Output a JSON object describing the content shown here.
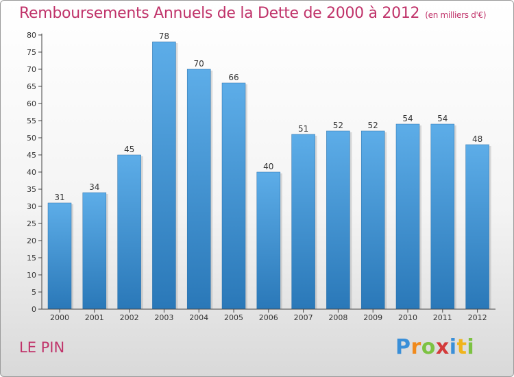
{
  "title": "Remboursements Annuels de la Dette de 2000 à 2012",
  "unit": "(en milliers d'€)",
  "commune": "LE PIN",
  "logo": {
    "letters": [
      {
        "ch": "P",
        "color": "#3a8fd8"
      },
      {
        "ch": "r",
        "color": "#f08a1c"
      },
      {
        "ch": "o",
        "color": "#7cc242"
      },
      {
        "ch": "x",
        "color": "#d33a3a"
      },
      {
        "ch": "i",
        "color": "#3a8fd8"
      },
      {
        "ch": "t",
        "color": "#f0b41c"
      },
      {
        "ch": "i",
        "color": "#7cc242"
      }
    ]
  },
  "colors": {
    "title": "#c0336a",
    "bar_light": "#5dade8",
    "bar_dark": "#2a78b8",
    "axis": "#444444"
  },
  "chart_data": {
    "type": "bar",
    "categories": [
      "2000",
      "2001",
      "2002",
      "2003",
      "2004",
      "2005",
      "2006",
      "2007",
      "2008",
      "2009",
      "2010",
      "2011",
      "2012"
    ],
    "values": [
      31,
      34,
      45,
      78,
      70,
      66,
      40,
      51,
      52,
      52,
      54,
      54,
      48
    ],
    "ylim": [
      0,
      80
    ],
    "yticks": [
      0,
      5,
      10,
      15,
      20,
      25,
      30,
      35,
      40,
      45,
      50,
      55,
      60,
      65,
      70,
      75,
      80
    ],
    "grid": false,
    "data_labels": true
  }
}
